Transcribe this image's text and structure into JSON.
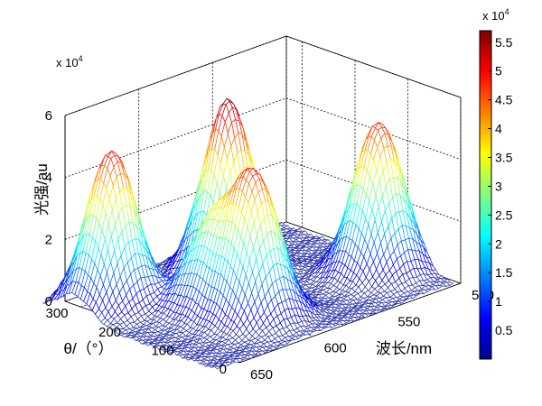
{
  "chart_data": {
    "type": "surface",
    "title": "",
    "zlabel": "光强/au",
    "ylabel": "θ/（°）",
    "xlabel": "波长/nm",
    "z_exponent_label": "x 10",
    "z_exponent_power": "4",
    "z_multiplier": 10000,
    "x_axis": {
      "label": "波长/nm",
      "range": [
        500,
        670
      ],
      "ticks": [
        "500",
        "550",
        "600",
        "650"
      ],
      "tick_values": [
        500,
        550,
        600,
        650
      ]
    },
    "y_axis": {
      "label": "θ/（°）",
      "range": [
        0,
        330
      ],
      "ticks": [
        "0",
        "100",
        "200",
        "300"
      ],
      "tick_values": [
        0,
        100,
        200,
        300
      ]
    },
    "z_axis": {
      "label": "光强/au",
      "range": [
        0,
        6
      ],
      "ticks": [
        "0",
        "2",
        "4",
        "6"
      ],
      "tick_values": [
        0,
        2,
        4,
        6
      ]
    },
    "peaks": [
      {
        "wavelength_nm": 640,
        "theta_deg": 270,
        "intensity": 5.0
      },
      {
        "wavelength_nm": 605,
        "theta_deg": 95,
        "intensity": 4.5
      },
      {
        "wavelength_nm": 570,
        "theta_deg": 245,
        "intensity": 5.6
      },
      {
        "wavelength_nm": 520,
        "theta_deg": 100,
        "intensity": 4.9
      },
      {
        "wavelength_nm": 612,
        "theta_deg": 160,
        "intensity": 2.8
      }
    ],
    "colorbar": {
      "exponent_label": "x 10",
      "exponent_power": "4",
      "range": [
        0,
        5.7
      ],
      "ticks": [
        "0.5",
        "1",
        "1.5",
        "2",
        "2.5",
        "3",
        "3.5",
        "4",
        "4.5",
        "5",
        "5.5"
      ],
      "tick_values": [
        0.5,
        1,
        1.5,
        2,
        2.5,
        3,
        3.5,
        4,
        4.5,
        5,
        5.5
      ]
    },
    "colormap": [
      "#00008f",
      "#0000ff",
      "#00ffff",
      "#ffff00",
      "#ff0000",
      "#800000"
    ],
    "grid": true,
    "mesh_color": "#2a34a8"
  }
}
